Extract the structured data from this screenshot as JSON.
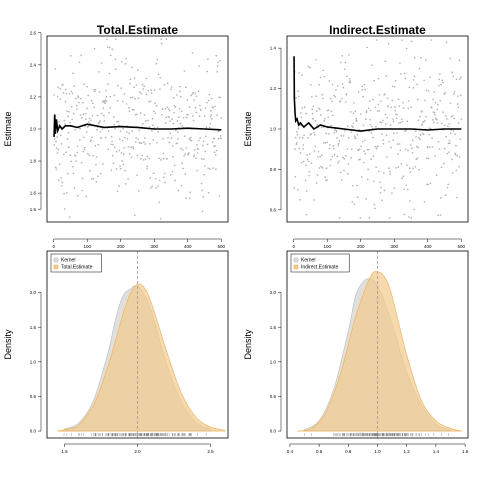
{
  "colors": {
    "draw_points": "#b3b3b3",
    "running_mean": "#000000",
    "kernel_fill": "#d9d9d9",
    "kernel_stroke": "#bdbdbd",
    "posterior_fill": "#f2c98a",
    "posterior_stroke": "#f0b050",
    "reference_line": "#9a9a9a",
    "rug": "#808080"
  },
  "chart_data": [
    {
      "type": "scatter",
      "panel": "top-left",
      "title": "Total.Estimate",
      "ylabel": "Estimate",
      "xlabel": "",
      "xlim": [
        -20,
        520
      ],
      "ylim": [
        1.42,
        2.58
      ],
      "xticks": [
        0,
        100,
        200,
        300,
        400,
        500
      ],
      "yticks": [
        1.5,
        1.6,
        1.8,
        2.0,
        2.2,
        2.4,
        2.6
      ],
      "ytick_labels": [
        "1.5",
        "1.6",
        "1.8",
        "2.0",
        "2.2",
        "2.4",
        "2.6"
      ],
      "n_draws": 500,
      "draw_mean": 2.0,
      "draw_spread": 0.22,
      "running_mean_series": {
        "x": [
          1,
          3,
          5,
          8,
          12,
          18,
          25,
          35,
          50,
          70,
          100,
          150,
          200,
          250,
          300,
          350,
          400,
          450,
          500
        ],
        "y": [
          1.95,
          2.09,
          1.97,
          2.06,
          1.99,
          2.02,
          2.0,
          2.02,
          2.02,
          2.01,
          2.03,
          2.01,
          2.015,
          2.01,
          2.0,
          2.0,
          2.005,
          2.0,
          1.995
        ]
      },
      "grid": false
    },
    {
      "type": "scatter",
      "panel": "top-right",
      "title": "Indirect.Estimate",
      "ylabel": "Estimate",
      "xlabel": "",
      "xlim": [
        -20,
        520
      ],
      "ylim": [
        0.54,
        1.46
      ],
      "xticks": [
        0,
        100,
        200,
        300,
        400,
        500
      ],
      "yticks": [
        0.6,
        0.8,
        1.0,
        1.2,
        1.4
      ],
      "ytick_labels": [
        "0.6",
        "0.8",
        "1.0",
        "1.2",
        "1.4"
      ],
      "n_draws": 500,
      "draw_mean": 1.0,
      "draw_spread": 0.18,
      "running_mean_series": {
        "x": [
          1,
          2,
          4,
          6,
          10,
          15,
          20,
          30,
          45,
          60,
          80,
          100,
          150,
          200,
          250,
          300,
          350,
          400,
          450,
          500
        ],
        "y": [
          1.36,
          1.15,
          1.08,
          1.04,
          1.05,
          1.02,
          1.03,
          1.01,
          1.03,
          1.0,
          1.02,
          1.01,
          1.0,
          0.99,
          1.0,
          1.0,
          1.0,
          0.995,
          1.0,
          1.0
        ]
      },
      "grid": false
    },
    {
      "type": "area",
      "panel": "bottom-left",
      "title": "",
      "ylabel": "Density",
      "xlabel": "",
      "xlim": [
        1.38,
        2.62
      ],
      "ylim": [
        -0.1,
        2.6
      ],
      "xticks": [
        1.5,
        2.0,
        2.5
      ],
      "xtick_labels": [
        "1.5",
        "2.0",
        "2.5"
      ],
      "yticks": [
        0.0,
        0.5,
        1.0,
        1.5,
        2.0
      ],
      "ytick_labels": [
        "0.0",
        "0.5",
        "1.0",
        "1.5",
        "2.0"
      ],
      "legend": [
        "Kernel",
        "Total.Estimate"
      ],
      "legend_position": "top-left",
      "reference_line_x": 2.0,
      "series": [
        {
          "name": "Kernel",
          "x": [
            1.5,
            1.6,
            1.7,
            1.8,
            1.85,
            1.9,
            1.95,
            2.0,
            2.05,
            2.1,
            2.2,
            2.3,
            2.4,
            2.5
          ],
          "values": [
            0.03,
            0.12,
            0.45,
            1.15,
            1.62,
            1.95,
            2.05,
            2.1,
            1.95,
            1.7,
            0.95,
            0.42,
            0.12,
            0.03
          ]
        },
        {
          "name": "Total.Estimate",
          "x": [
            1.45,
            1.55,
            1.6,
            1.7,
            1.8,
            1.9,
            1.95,
            2.0,
            2.05,
            2.1,
            2.2,
            2.3,
            2.4,
            2.5,
            2.6
          ],
          "values": [
            0.0,
            0.04,
            0.09,
            0.38,
            0.95,
            1.68,
            1.98,
            2.12,
            2.06,
            1.82,
            1.15,
            0.55,
            0.2,
            0.06,
            0.01
          ]
        }
      ],
      "rug": {
        "center": 2.0,
        "spread": 0.2,
        "count": 180
      },
      "grid": false
    },
    {
      "type": "area",
      "panel": "bottom-right",
      "title": "",
      "ylabel": "Density",
      "xlabel": "",
      "xlim": [
        0.38,
        1.62
      ],
      "ylim": [
        -0.1,
        2.6
      ],
      "xticks": [
        0.4,
        0.6,
        0.8,
        1.0,
        1.2,
        1.4,
        1.6
      ],
      "xtick_labels": [
        "0.4",
        "0.6",
        "0.8",
        "1.0",
        "1.2",
        "1.4",
        "1.6"
      ],
      "yticks": [
        0.0,
        0.5,
        1.0,
        1.5,
        2.0
      ],
      "ytick_labels": [
        "0.0",
        "0.5",
        "1.0",
        "1.5",
        "2.0"
      ],
      "legend": [
        "Kernel",
        "Indirect.Estimate"
      ],
      "legend_position": "top-left",
      "reference_line_x": 1.0,
      "series": [
        {
          "name": "Kernel",
          "x": [
            0.5,
            0.6,
            0.7,
            0.8,
            0.85,
            0.9,
            0.95,
            1.0,
            1.05,
            1.1,
            1.2,
            1.3,
            1.4,
            1.5
          ],
          "values": [
            0.02,
            0.15,
            0.6,
            1.45,
            1.95,
            2.15,
            2.2,
            2.1,
            1.85,
            1.55,
            0.85,
            0.38,
            0.1,
            0.02
          ]
        },
        {
          "name": "Indirect.Estimate",
          "x": [
            0.45,
            0.55,
            0.65,
            0.75,
            0.85,
            0.95,
            1.0,
            1.05,
            1.1,
            1.2,
            1.3,
            1.4,
            1.5,
            1.58
          ],
          "values": [
            0.0,
            0.04,
            0.28,
            0.85,
            1.65,
            2.22,
            2.3,
            2.22,
            1.95,
            1.1,
            0.45,
            0.15,
            0.04,
            0.0
          ]
        }
      ],
      "rug": {
        "center": 1.0,
        "spread": 0.17,
        "count": 180
      },
      "grid": false
    }
  ]
}
